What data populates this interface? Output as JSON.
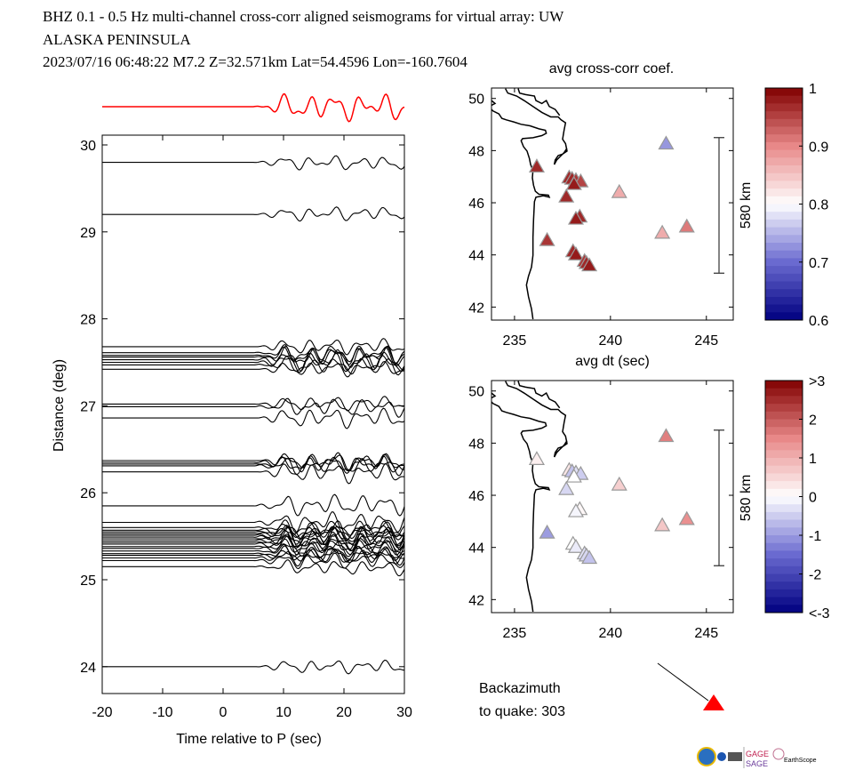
{
  "header": {
    "line1": "BHZ  0.1 - 0.5 Hz  multi-channel cross-corr aligned seismograms for virtual array: UW",
    "line2": "ALASKA PENINSULA",
    "line3": "2023/07/16  06:48:22  M7.2  Z=32.571km Lat=54.4596 Lon=-160.7604"
  },
  "colors": {
    "stack_trace": "#ff0000",
    "traces": "#000000",
    "quake_marker": "#ff0000",
    "colormap": [
      "#000080",
      "#6a6ad0",
      "#ffffff",
      "#e88888",
      "#800000"
    ]
  },
  "chart_data": [
    {
      "type": "line",
      "xlabel": "Time relative to P (sec)",
      "ylabel": "Distance (deg)",
      "xlim": [
        -20,
        30
      ],
      "ylim": [
        23.7,
        30.1
      ],
      "xticks": [
        "-20",
        "-10",
        "0",
        "10",
        "20",
        "30"
      ],
      "yticks": [
        "24",
        "25",
        "26",
        "27",
        "28",
        "29",
        "30"
      ],
      "trace_distances": [
        29.8,
        29.2,
        27.68,
        27.61,
        27.58,
        27.56,
        27.53,
        27.5,
        27.47,
        27.42,
        27.02,
        26.99,
        26.86,
        26.37,
        26.35,
        26.33,
        26.31,
        26.24,
        25.85,
        25.66,
        25.6,
        25.57,
        25.55,
        25.53,
        25.51,
        25.49,
        25.47,
        25.45,
        25.43,
        25.41,
        25.38,
        25.36,
        25.33,
        25.3,
        25.28,
        25.25,
        25.22,
        25.15,
        24.0
      ]
    },
    {
      "type": "scatter",
      "title": "avg cross-corr coef.",
      "xlabel": "avg dt (sec)",
      "xlim": [
        233.8,
        246.4
      ],
      "ylim": [
        41.5,
        50.4
      ],
      "xticks": [
        "235",
        "240",
        "245"
      ],
      "yticks": [
        "42",
        "44",
        "46",
        "48",
        "50"
      ],
      "scale_bar": "580 km",
      "colorbar": {
        "range": [
          0.6,
          1.0
        ],
        "ticks": [
          "1",
          "0.9",
          "0.8",
          "0.7",
          "0.6"
        ]
      },
      "stations": [
        {
          "lon": 236.16,
          "lat": 47.42,
          "value": 0.97
        },
        {
          "lon": 236.7,
          "lat": 44.6,
          "value": 0.96
        },
        {
          "lon": 237.85,
          "lat": 47.0,
          "value": 0.97
        },
        {
          "lon": 238.0,
          "lat": 46.95,
          "value": 0.97
        },
        {
          "lon": 238.2,
          "lat": 46.9,
          "value": 0.96
        },
        {
          "lon": 238.45,
          "lat": 46.85,
          "value": 0.95
        },
        {
          "lon": 238.1,
          "lat": 46.75,
          "value": 0.98
        },
        {
          "lon": 237.7,
          "lat": 46.27,
          "value": 0.97
        },
        {
          "lon": 238.4,
          "lat": 45.5,
          "value": 0.97
        },
        {
          "lon": 238.2,
          "lat": 45.42,
          "value": 0.98
        },
        {
          "lon": 238.05,
          "lat": 44.17,
          "value": 0.97
        },
        {
          "lon": 238.2,
          "lat": 44.05,
          "value": 0.98
        },
        {
          "lon": 238.65,
          "lat": 43.8,
          "value": 0.96
        },
        {
          "lon": 238.75,
          "lat": 43.72,
          "value": 0.97
        },
        {
          "lon": 238.9,
          "lat": 43.63,
          "value": 0.98
        },
        {
          "lon": 240.46,
          "lat": 46.44,
          "value": 0.87
        },
        {
          "lon": 242.7,
          "lat": 44.88,
          "value": 0.87
        },
        {
          "lon": 243.98,
          "lat": 45.12,
          "value": 0.91
        },
        {
          "lon": 242.9,
          "lat": 48.3,
          "value": 0.73
        }
      ]
    },
    {
      "type": "scatter",
      "xlim": [
        233.8,
        246.4
      ],
      "ylim": [
        41.5,
        50.4
      ],
      "xticks": [
        "235",
        "240",
        "245"
      ],
      "yticks": [
        "42",
        "44",
        "46",
        "48",
        "50"
      ],
      "scale_bar": "580 km",
      "colorbar": {
        "range": [
          -3,
          3
        ],
        "ticks": [
          ">3",
          "2",
          "1",
          "0",
          "-1",
          "-2",
          "<-3"
        ]
      },
      "stations": [
        {
          "lon": 236.16,
          "lat": 47.42,
          "value": 0.2
        },
        {
          "lon": 236.7,
          "lat": 44.6,
          "value": -1.0
        },
        {
          "lon": 237.85,
          "lat": 47.0,
          "value": 0.3
        },
        {
          "lon": 238.0,
          "lat": 46.95,
          "value": -0.6
        },
        {
          "lon": 238.2,
          "lat": 46.9,
          "value": -0.3
        },
        {
          "lon": 238.45,
          "lat": 46.85,
          "value": -0.5
        },
        {
          "lon": 238.1,
          "lat": 46.75,
          "value": 0.0
        },
        {
          "lon": 237.7,
          "lat": 46.27,
          "value": -0.4
        },
        {
          "lon": 238.4,
          "lat": 45.5,
          "value": 0.1
        },
        {
          "lon": 238.2,
          "lat": 45.42,
          "value": -0.1
        },
        {
          "lon": 238.05,
          "lat": 44.17,
          "value": 0.0
        },
        {
          "lon": 238.2,
          "lat": 44.05,
          "value": -0.2
        },
        {
          "lon": 238.65,
          "lat": 43.8,
          "value": -0.3
        },
        {
          "lon": 238.75,
          "lat": 43.72,
          "value": -0.4
        },
        {
          "lon": 238.9,
          "lat": 43.63,
          "value": -0.6
        },
        {
          "lon": 240.46,
          "lat": 46.44,
          "value": 0.6
        },
        {
          "lon": 242.7,
          "lat": 44.88,
          "value": 0.7
        },
        {
          "lon": 243.98,
          "lat": 45.12,
          "value": 1.4
        },
        {
          "lon": 242.9,
          "lat": 48.3,
          "value": 1.6
        }
      ]
    }
  ],
  "backazimuth": {
    "line1": "Backazimuth",
    "line2": "to quake:  303",
    "value": 303
  },
  "logos": {
    "gage": "GAGE",
    "sage": "SAGE",
    "earthscope": "EarthScope"
  }
}
